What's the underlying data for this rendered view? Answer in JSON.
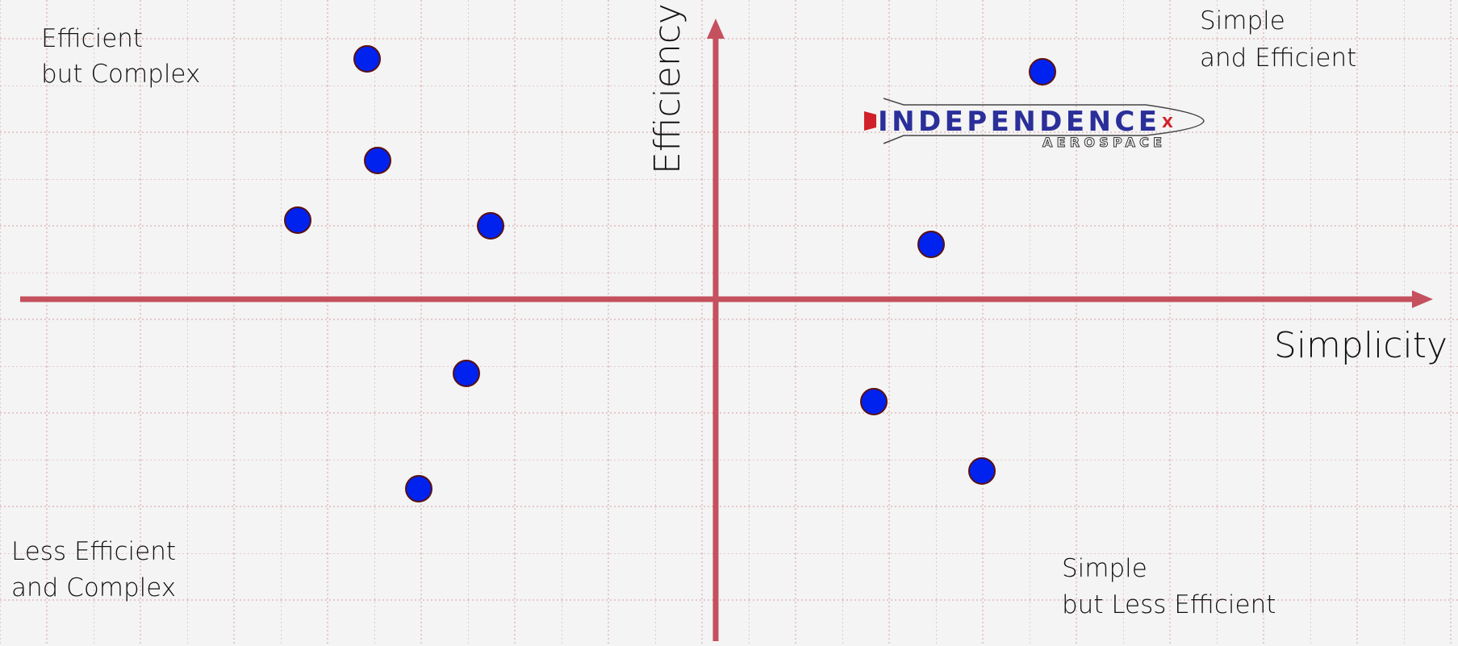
{
  "quadrants": {
    "top_left": [
      "Efficient",
      "but Complex"
    ],
    "top_right": [
      "Simple",
      "and Efficient"
    ],
    "bottom_left": [
      "Less Efficient",
      "and Complex"
    ],
    "bottom_right": [
      "Simple",
      "but Less Efficient"
    ]
  },
  "axes": {
    "x_label": "Simplicity",
    "y_label": "Efficiency"
  },
  "logo": {
    "name": "INDEPENDENCE",
    "mark": "X",
    "sub": "AEROSPACE"
  }
}
